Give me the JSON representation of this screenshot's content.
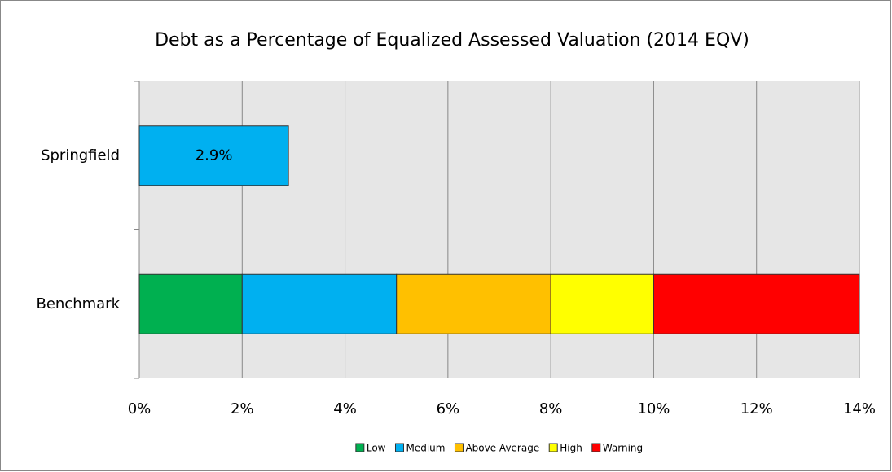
{
  "chart_data": {
    "type": "stacked-bar-horizontal",
    "title": "Debt as a Percentage of Equalized Assessed Valuation (2014 EQV)",
    "categories": [
      "Springfield",
      "Benchmark"
    ],
    "series": [
      {
        "name": "Low",
        "color": "#00b050",
        "values": [
          null,
          2
        ]
      },
      {
        "name": "Medium",
        "color": "#00b0f0",
        "values": [
          2.9,
          3
        ],
        "value_labels": [
          "2.9%",
          null
        ]
      },
      {
        "name": "Above Average",
        "color": "#ffc000",
        "values": [
          null,
          3
        ]
      },
      {
        "name": "High",
        "color": "#ffff00",
        "values": [
          null,
          2
        ]
      },
      {
        "name": "Warning",
        "color": "#ff0000",
        "values": [
          null,
          4
        ]
      }
    ],
    "xlim": [
      0,
      14
    ],
    "xticks": [
      {
        "value": 0,
        "label": "0%"
      },
      {
        "value": 2,
        "label": "2%"
      },
      {
        "value": 4,
        "label": "4%"
      },
      {
        "value": 6,
        "label": "6%"
      },
      {
        "value": 8,
        "label": "8%"
      },
      {
        "value": 10,
        "label": "10%"
      },
      {
        "value": 12,
        "label": "12%"
      },
      {
        "value": 14,
        "label": "14%"
      }
    ],
    "grid": true,
    "legend": "bottom"
  }
}
